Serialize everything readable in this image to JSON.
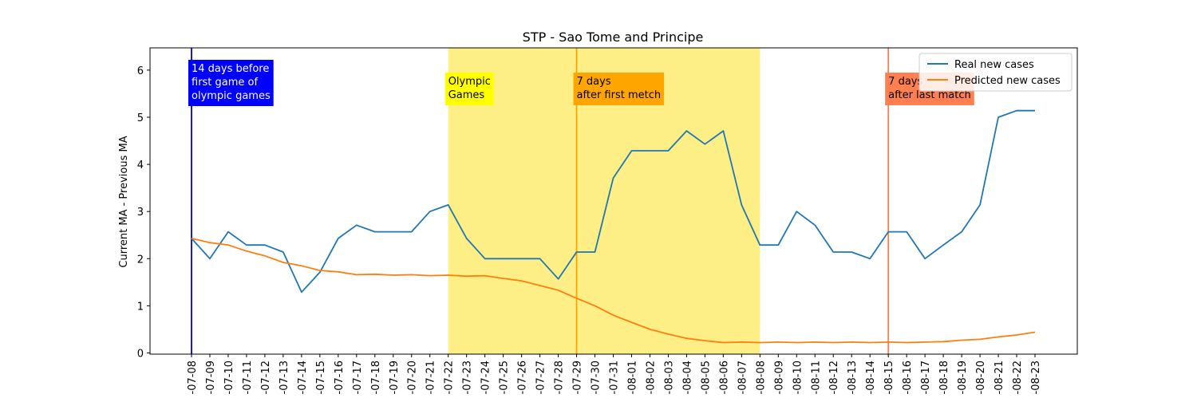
{
  "chart_data": {
    "type": "line",
    "title": "STP - Sao Tome and Principe",
    "xlabel": "",
    "ylabel": "Current MA - Previous MA",
    "ylim": [
      -0.05,
      6.5
    ],
    "yticks": [
      0,
      1,
      2,
      3,
      4,
      5,
      6
    ],
    "legend_position": "top-right",
    "x": [
      "-07-08",
      "-07-09",
      "-07-10",
      "-07-11",
      "-07-12",
      "-07-13",
      "-07-14",
      "-07-15",
      "-07-16",
      "-07-17",
      "-07-18",
      "-07-19",
      "-07-20",
      "-07-21",
      "-07-22",
      "-07-23",
      "-07-24",
      "-07-25",
      "-07-26",
      "-07-27",
      "-07-28",
      "-07-29",
      "-07-30",
      "-07-31",
      "-08-01",
      "-08-02",
      "-08-03",
      "-08-04",
      "-08-05",
      "-08-06",
      "-08-07",
      "-08-08",
      "-08-09",
      "-08-10",
      "-08-11",
      "-08-12",
      "-08-13",
      "-08-14",
      "-08-15",
      "-08-16",
      "-08-17",
      "-08-18",
      "-08-19",
      "-08-20",
      "-08-21",
      "-08-22",
      "-08-23"
    ],
    "series": [
      {
        "name": "Real new cases",
        "color": "#1f77b4",
        "values": [
          2.43,
          2.0,
          2.57,
          2.29,
          2.29,
          2.14,
          1.29,
          1.71,
          2.43,
          2.71,
          2.57,
          2.57,
          2.57,
          3.0,
          3.14,
          2.43,
          2.0,
          2.0,
          2.0,
          2.0,
          1.57,
          2.14,
          2.14,
          3.71,
          4.29,
          4.29,
          4.29,
          4.71,
          4.43,
          4.71,
          3.14,
          2.29,
          2.29,
          3.0,
          2.71,
          2.14,
          2.14,
          2.0,
          2.57,
          2.57,
          2.0,
          2.29,
          2.57,
          3.14,
          5.0,
          5.14,
          5.14
        ]
      },
      {
        "name": "Predicted new cases",
        "color": "#ff7f0e",
        "values": [
          2.43,
          2.34,
          2.29,
          2.16,
          2.06,
          1.92,
          1.85,
          1.75,
          1.72,
          1.66,
          1.67,
          1.65,
          1.66,
          1.64,
          1.65,
          1.63,
          1.64,
          1.58,
          1.53,
          1.43,
          1.33,
          1.16,
          1.0,
          0.8,
          0.65,
          0.5,
          0.4,
          0.31,
          0.26,
          0.22,
          0.23,
          0.22,
          0.23,
          0.22,
          0.23,
          0.22,
          0.23,
          0.22,
          0.23,
          0.22,
          0.23,
          0.24,
          0.27,
          0.29,
          0.34,
          0.38,
          0.44
        ]
      }
    ],
    "shaded_region": {
      "start": "-07-22",
      "end": "-08-08",
      "color": "#fdee86"
    },
    "vlines": [
      {
        "at": "-07-08",
        "color": "#0000cc"
      },
      {
        "at": "-07-29",
        "color": "#ffa500"
      },
      {
        "at": "-08-15",
        "color": "#ff7f50"
      }
    ],
    "annotations": [
      {
        "at": "-07-08",
        "lines": [
          "14 days before",
          "first game of",
          "olympic games"
        ],
        "bg": "#0000ff",
        "fg": "#ffffff"
      },
      {
        "at": "-07-22",
        "lines": [
          "Olympic",
          "Games"
        ],
        "bg": "#ffff00",
        "fg": "#000000"
      },
      {
        "at": "-07-29",
        "lines": [
          "7 days",
          "after first metch"
        ],
        "bg": "#ffa500",
        "fg": "#000000"
      },
      {
        "at": "-08-15",
        "lines": [
          "7 days",
          "after last match"
        ],
        "bg": "#ff7f50",
        "fg": "#000000"
      }
    ]
  }
}
